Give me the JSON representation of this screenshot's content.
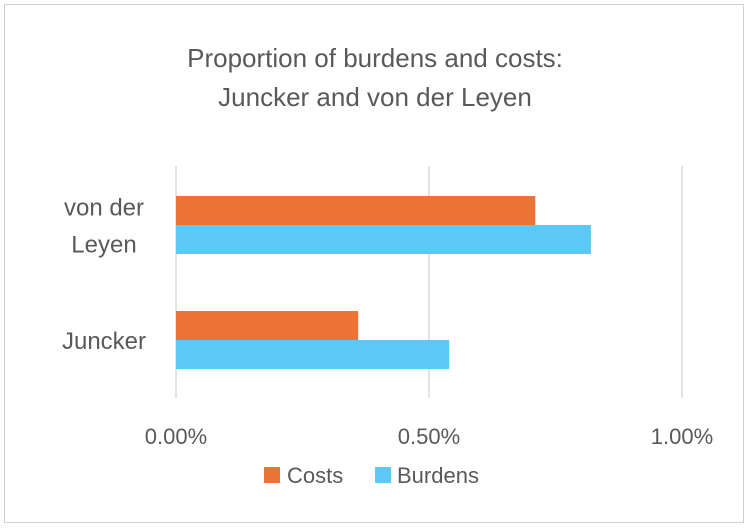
{
  "chart_data": {
    "type": "bar",
    "orientation": "horizontal",
    "title_lines": [
      "Proportion of burdens and costs:",
      "Juncker and von der Leyen"
    ],
    "categories": [
      [
        "von der",
        "Leyen"
      ],
      [
        "Juncker"
      ]
    ],
    "series": [
      {
        "name": "Costs",
        "color": "#ED7236",
        "values": [
          0.0071,
          0.0036
        ]
      },
      {
        "name": "Burdens",
        "color": "#5BC8F5",
        "values": [
          0.0082,
          0.0054
        ]
      }
    ],
    "xlim": [
      0,
      0.01
    ],
    "x_ticks": [
      {
        "value": 0,
        "label": "0.00%"
      },
      {
        "value": 0.005,
        "label": "0.50%"
      },
      {
        "value": 0.01,
        "label": "1.00%"
      }
    ],
    "grid": "vertical",
    "legend_position": "bottom"
  }
}
